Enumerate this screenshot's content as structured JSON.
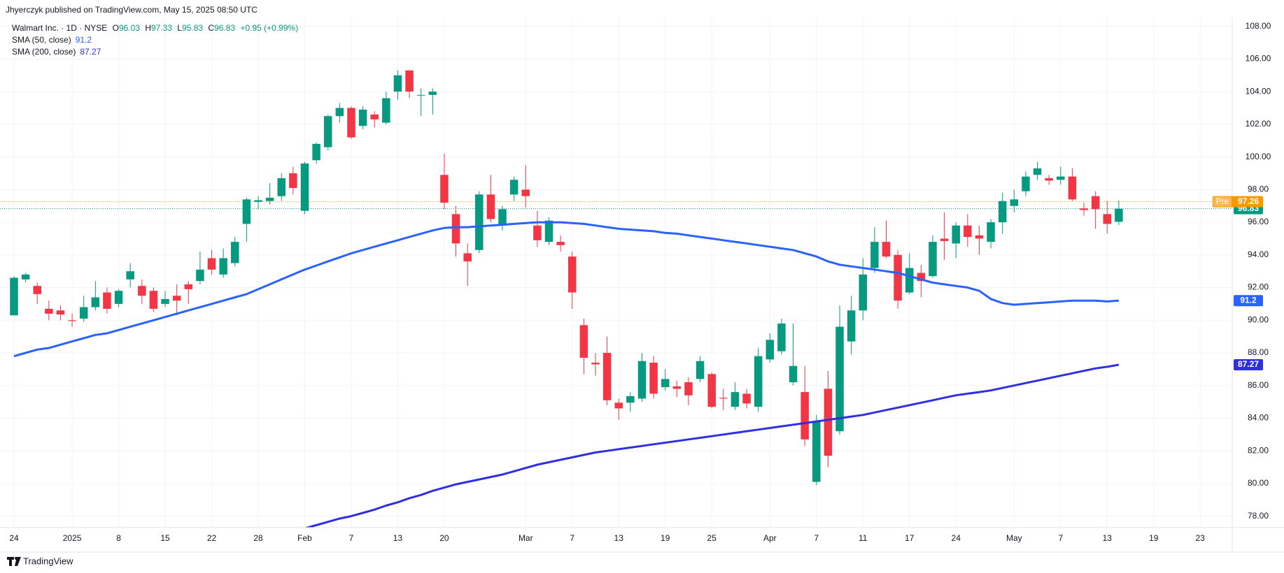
{
  "attribution": "Jhyerczyk published on TradingView.com, May 15, 2025 08:50 UTC",
  "footer": "TradingView",
  "chart_data": {
    "type": "candlestick",
    "title": "Walmart Inc. · 1D · NYSE",
    "ohlc_labels": [
      "O",
      "H",
      "L",
      "C"
    ],
    "change_label": "+0.95 (+0.99%)",
    "categories": [
      "24",
      null,
      null,
      null,
      null,
      "2025",
      null,
      null,
      null,
      "8",
      null,
      null,
      null,
      "15",
      null,
      null,
      null,
      "22",
      null,
      null,
      null,
      "28",
      null,
      null,
      null,
      "Feb",
      null,
      null,
      null,
      "7",
      null,
      null,
      null,
      "13",
      null,
      null,
      null,
      "20",
      null,
      null,
      null,
      null,
      null,
      null,
      "Mar",
      null,
      null,
      null,
      "7",
      null,
      null,
      null,
      "13",
      null,
      null,
      null,
      "19",
      null,
      null,
      null,
      "25",
      null,
      null,
      null,
      null,
      "Apr",
      null,
      null,
      null,
      "7",
      null,
      null,
      null,
      "11",
      null,
      null,
      null,
      "17",
      null,
      null,
      null,
      "24",
      null,
      null,
      null,
      null,
      "May",
      null,
      null,
      null,
      "7",
      null,
      null,
      null,
      "13",
      null,
      null,
      null,
      "19",
      null,
      null,
      null,
      "23",
      null,
      null
    ],
    "candles": {
      "up_color": "#089981",
      "down_color": "#f23645",
      "open": [
        90.3,
        92.5,
        92.1,
        90.7,
        90.6,
        90.0,
        90.1,
        90.8,
        91.7,
        91.0,
        92.5,
        92.1,
        91.8,
        91.0,
        91.5,
        92.2,
        92.4,
        93.8,
        92.8,
        93.5,
        95.9,
        97.25,
        97.3,
        97.6,
        99.0,
        96.7,
        99.8,
        100.6,
        102.5,
        103.0,
        101.9,
        102.6,
        102.1,
        104.0,
        105.3,
        103.8,
        103.8,
        98.9,
        96.5,
        94.1,
        94.3,
        97.7,
        95.8,
        97.7,
        98.0,
        95.8,
        94.8,
        94.8,
        93.9,
        89.7,
        87.4,
        88.0,
        84.95,
        84.95,
        85.2,
        87.4,
        85.9,
        85.95,
        86.2,
        86.4,
        86.7,
        85.25,
        84.7,
        85.5,
        84.7,
        87.6,
        88.1,
        86.2,
        85.6,
        80.1,
        85.8,
        83.2,
        88.7,
        90.6,
        93.2,
        94.8,
        94.0,
        91.7,
        92.9,
        92.7,
        95.0,
        94.7,
        95.8,
        95.2,
        94.8,
        96.0,
        97.0,
        97.9,
        98.9,
        98.7,
        98.6,
        98.8,
        96.85,
        97.6,
        96.5,
        96.03,
        null,
        null,
        null,
        null,
        null,
        null,
        null,
        null,
        null
      ],
      "high": [
        92.7,
        92.9,
        92.3,
        91.2,
        90.9,
        90.4,
        91.5,
        92.4,
        92.0,
        91.9,
        93.5,
        92.5,
        92.0,
        91.8,
        92.2,
        92.4,
        94.2,
        94.3,
        94.4,
        95.1,
        97.5,
        97.6,
        98.4,
        99.0,
        99.4,
        99.7,
        100.9,
        102.6,
        103.3,
        103.1,
        103.1,
        102.8,
        104.0,
        105.3,
        105.3,
        104.2,
        104.2,
        100.2,
        97.0,
        94.7,
        97.9,
        98.9,
        97.0,
        98.8,
        99.5,
        96.7,
        96.3,
        95.2,
        94.2,
        90.1,
        88.0,
        89.0,
        85.2,
        85.6,
        88.0,
        87.8,
        87.0,
        86.3,
        86.5,
        87.8,
        86.8,
        85.8,
        86.2,
        85.8,
        88.3,
        89.2,
        90.1,
        89.8,
        87.2,
        84.2,
        86.9,
        90.9,
        91.5,
        93.8,
        95.7,
        96.1,
        94.3,
        94.1,
        93.4,
        95.2,
        96.6,
        96.0,
        96.5,
        95.8,
        96.2,
        97.8,
        98.0,
        99.1,
        99.7,
        98.9,
        99.4,
        99.3,
        97.2,
        97.9,
        97.3,
        97.33,
        null,
        null,
        null,
        null,
        null,
        null,
        null,
        null,
        null
      ],
      "low": [
        90.3,
        92.3,
        91.0,
        90.0,
        90.0,
        89.6,
        89.9,
        90.6,
        90.4,
        90.8,
        92.0,
        91.0,
        90.5,
        90.8,
        90.3,
        91.0,
        92.2,
        92.8,
        92.6,
        93.3,
        94.8,
        96.8,
        97.1,
        97.3,
        97.7,
        96.5,
        99.6,
        100.4,
        102.1,
        101.1,
        101.7,
        101.8,
        102.0,
        103.5,
        103.6,
        102.5,
        102.6,
        96.8,
        93.9,
        92.1,
        94.1,
        96.0,
        95.5,
        97.3,
        96.9,
        94.5,
        94.6,
        94.2,
        90.7,
        86.7,
        86.6,
        84.8,
        83.9,
        84.4,
        85.0,
        85.2,
        85.7,
        85.3,
        84.8,
        86.2,
        84.6,
        84.5,
        84.5,
        84.6,
        84.4,
        87.4,
        87.9,
        86.0,
        82.3,
        79.9,
        81.0,
        83.0,
        87.9,
        90.0,
        92.9,
        93.8,
        90.7,
        91.6,
        91.4,
        92.6,
        93.7,
        93.8,
        94.5,
        94.0,
        94.4,
        95.3,
        96.6,
        97.6,
        98.6,
        98.3,
        98.3,
        97.3,
        96.4,
        95.6,
        95.3,
        95.83,
        null,
        null,
        null,
        null,
        null,
        null,
        null,
        null,
        null
      ],
      "close": [
        92.6,
        92.8,
        91.6,
        90.4,
        90.35,
        89.95,
        90.8,
        91.4,
        90.7,
        91.8,
        93.0,
        91.5,
        90.7,
        91.3,
        91.2,
        91.9,
        93.1,
        93.1,
        93.8,
        94.8,
        97.4,
        97.35,
        97.5,
        98.7,
        98.1,
        99.6,
        100.8,
        102.5,
        103.0,
        101.2,
        102.9,
        102.3,
        103.6,
        105.0,
        104.0,
        103.8,
        104.0,
        97.2,
        94.7,
        93.6,
        97.7,
        96.2,
        96.8,
        98.6,
        97.6,
        94.9,
        96.1,
        94.6,
        91.7,
        87.7,
        87.3,
        85.1,
        84.6,
        85.35,
        87.5,
        85.5,
        86.4,
        85.8,
        85.4,
        87.5,
        84.7,
        85.2,
        85.6,
        84.9,
        87.8,
        88.8,
        89.8,
        87.2,
        82.7,
        83.8,
        81.7,
        89.6,
        90.6,
        92.8,
        94.8,
        93.9,
        91.2,
        93.2,
        92.4,
        94.8,
        94.85,
        95.8,
        95.1,
        95.0,
        96.0,
        97.3,
        97.4,
        98.8,
        99.3,
        98.55,
        98.8,
        97.4,
        96.75,
        96.8,
        95.9,
        96.83,
        null,
        null,
        null,
        null,
        null,
        null,
        null,
        null,
        null
      ]
    },
    "lines": [
      {
        "name": "SMA (50, close)",
        "color": "#2962ff",
        "values": [
          87.8,
          88.0,
          88.2,
          88.3,
          88.5,
          88.7,
          88.9,
          89.1,
          89.2,
          89.4,
          89.6,
          89.8,
          90.0,
          90.2,
          90.4,
          90.6,
          90.8,
          91.0,
          91.2,
          91.4,
          91.6,
          91.9,
          92.2,
          92.5,
          92.8,
          93.1,
          93.35,
          93.6,
          93.85,
          94.1,
          94.3,
          94.5,
          94.7,
          94.9,
          95.1,
          95.3,
          95.5,
          95.65,
          95.7,
          95.7,
          95.75,
          95.8,
          95.85,
          95.9,
          95.95,
          96.0,
          96.0,
          96.0,
          95.95,
          95.9,
          95.8,
          95.7,
          95.6,
          95.55,
          95.5,
          95.45,
          95.35,
          95.3,
          95.2,
          95.1,
          95.0,
          94.9,
          94.8,
          94.7,
          94.6,
          94.5,
          94.4,
          94.3,
          94.1,
          93.9,
          93.6,
          93.4,
          93.3,
          93.2,
          93.1,
          93.0,
          92.9,
          92.7,
          92.5,
          92.3,
          92.2,
          92.1,
          92.0,
          91.8,
          91.3,
          91.05,
          90.95,
          91.0,
          91.05,
          91.1,
          91.15,
          91.2,
          91.2,
          91.2,
          91.15,
          91.2,
          null,
          null,
          null,
          null,
          null,
          null,
          null,
          null,
          null
        ]
      },
      {
        "name": "SMA (200, close)",
        "color": "#2f2fe0",
        "values": [
          null,
          null,
          null,
          null,
          null,
          null,
          null,
          null,
          null,
          null,
          null,
          null,
          null,
          null,
          null,
          null,
          null,
          null,
          null,
          null,
          null,
          null,
          null,
          null,
          null,
          77.25,
          77.45,
          77.65,
          77.85,
          78.0,
          78.2,
          78.4,
          78.65,
          78.85,
          79.1,
          79.3,
          79.55,
          79.75,
          79.95,
          80.1,
          80.25,
          80.4,
          80.55,
          80.75,
          80.95,
          81.15,
          81.3,
          81.45,
          81.6,
          81.75,
          81.9,
          82.0,
          82.1,
          82.2,
          82.3,
          82.4,
          82.5,
          82.6,
          82.7,
          82.8,
          82.9,
          83.0,
          83.1,
          83.2,
          83.3,
          83.4,
          83.5,
          83.6,
          83.7,
          83.8,
          83.9,
          84.0,
          84.1,
          84.2,
          84.35,
          84.5,
          84.65,
          84.8,
          84.95,
          85.1,
          85.25,
          85.4,
          85.5,
          85.6,
          85.7,
          85.85,
          86.0,
          86.15,
          86.3,
          86.45,
          86.6,
          86.75,
          86.9,
          87.05,
          87.15,
          87.27,
          null,
          null,
          null,
          null,
          null,
          null,
          null,
          null,
          null
        ]
      }
    ],
    "premarket": {
      "label": "Pre",
      "value": 97.26,
      "color": "#ff9800"
    },
    "ylim": [
      77.3,
      108.5
    ],
    "yticks": [
      {
        "value": 78,
        "label": "78.00"
      },
      {
        "value": 80,
        "label": "80.00"
      },
      {
        "value": 82,
        "label": "82.00"
      },
      {
        "value": 84,
        "label": "84.00"
      },
      {
        "value": 86,
        "label": "86.00"
      },
      {
        "value": 88,
        "label": "88.00"
      },
      {
        "value": 90,
        "label": "90.00"
      },
      {
        "value": 92,
        "label": "92.00"
      },
      {
        "value": 94,
        "label": "94.00"
      },
      {
        "value": 96,
        "label": "96.00"
      },
      {
        "value": 98,
        "label": "98.00"
      },
      {
        "value": 100,
        "label": "100.00"
      },
      {
        "value": 102,
        "label": "102.00"
      },
      {
        "value": 104,
        "label": "104.00"
      },
      {
        "value": 106,
        "label": "106.00"
      },
      {
        "value": 108,
        "label": "108.00"
      }
    ],
    "grid": true
  }
}
